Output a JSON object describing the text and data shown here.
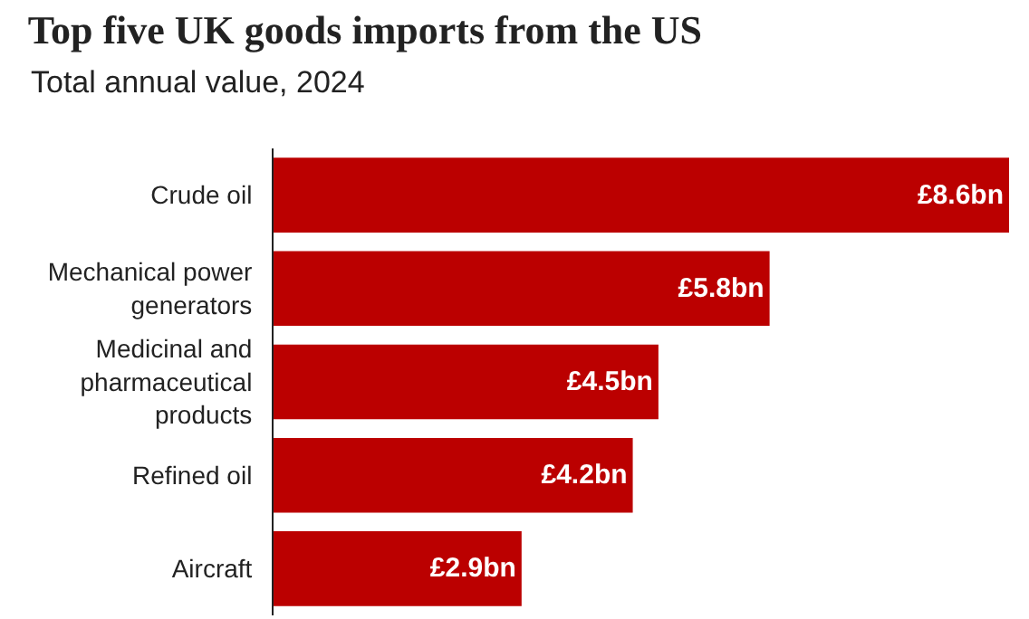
{
  "chart_data": {
    "type": "bar",
    "orientation": "horizontal",
    "title": "Top five UK goods imports from the US",
    "subtitle": "Total annual value, 2024",
    "categories": [
      "Crude oil",
      "Mechanical power generators",
      "Medicinal and pharmaceutical products",
      "Refined oil",
      "Aircraft"
    ],
    "values": [
      8.6,
      5.8,
      4.5,
      4.2,
      2.9
    ],
    "value_labels": [
      "£8.6bn",
      "£5.8bn",
      "£4.5bn",
      "£4.2bn",
      "£2.9bn"
    ],
    "color": "#bb0000",
    "xlim": [
      0,
      8.6
    ],
    "legend": false,
    "tick_labels": "y"
  }
}
